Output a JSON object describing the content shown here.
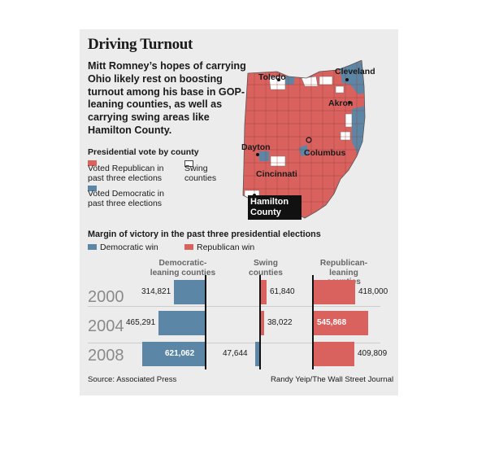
{
  "title": "Driving Turnout",
  "subtitle": "Mitt Romney’s hopes of carrying Ohio likely rest on boosting turnout among his base in GOP-leaning counties, as well as carrying swing areas like Hamilton County.",
  "map": {
    "legend_title": "Presidential vote by county",
    "legend": [
      {
        "label": "Voted Republican in past three elections",
        "color": "#d9625f"
      },
      {
        "label": "Voted Democratic in past three elections",
        "color": "#5b86a6"
      },
      {
        "label": "Swing counties",
        "color": "#ffffff"
      }
    ],
    "cities": [
      "Toledo",
      "Cleveland",
      "Akron",
      "Dayton",
      "Columbus",
      "Cincinnati"
    ],
    "callout": "Hamilton County"
  },
  "chart_data": {
    "type": "bar",
    "title": "Margin of victory in the past three presidential elections",
    "legend": [
      {
        "name": "Democratic win",
        "color": "#5b86a6"
      },
      {
        "name": "Republican win",
        "color": "#d9625f"
      }
    ],
    "categories": [
      "2000",
      "2004",
      "2008"
    ],
    "groups": [
      {
        "name": "Democratic-leaning counties",
        "values": [
          314821,
          465291,
          621062
        ],
        "labels": [
          "314,821",
          "465,291",
          "621,062"
        ],
        "winner": [
          "Democratic",
          "Democratic",
          "Democratic"
        ]
      },
      {
        "name": "Swing counties",
        "values": [
          61840,
          38022,
          47644
        ],
        "labels": [
          "61,840",
          "38,022",
          "47,644"
        ],
        "winner": [
          "Republican",
          "Republican",
          "Democratic"
        ]
      },
      {
        "name": "Republican-leaning counties",
        "values": [
          418000,
          545868,
          409809
        ],
        "labels": [
          "418,000",
          "545,868",
          "409,809"
        ],
        "winner": [
          "Republican",
          "Republican",
          "Republican"
        ]
      }
    ]
  },
  "source": "Source: Associated Press",
  "credit": "Randy Yeip/The Wall Street Journal"
}
